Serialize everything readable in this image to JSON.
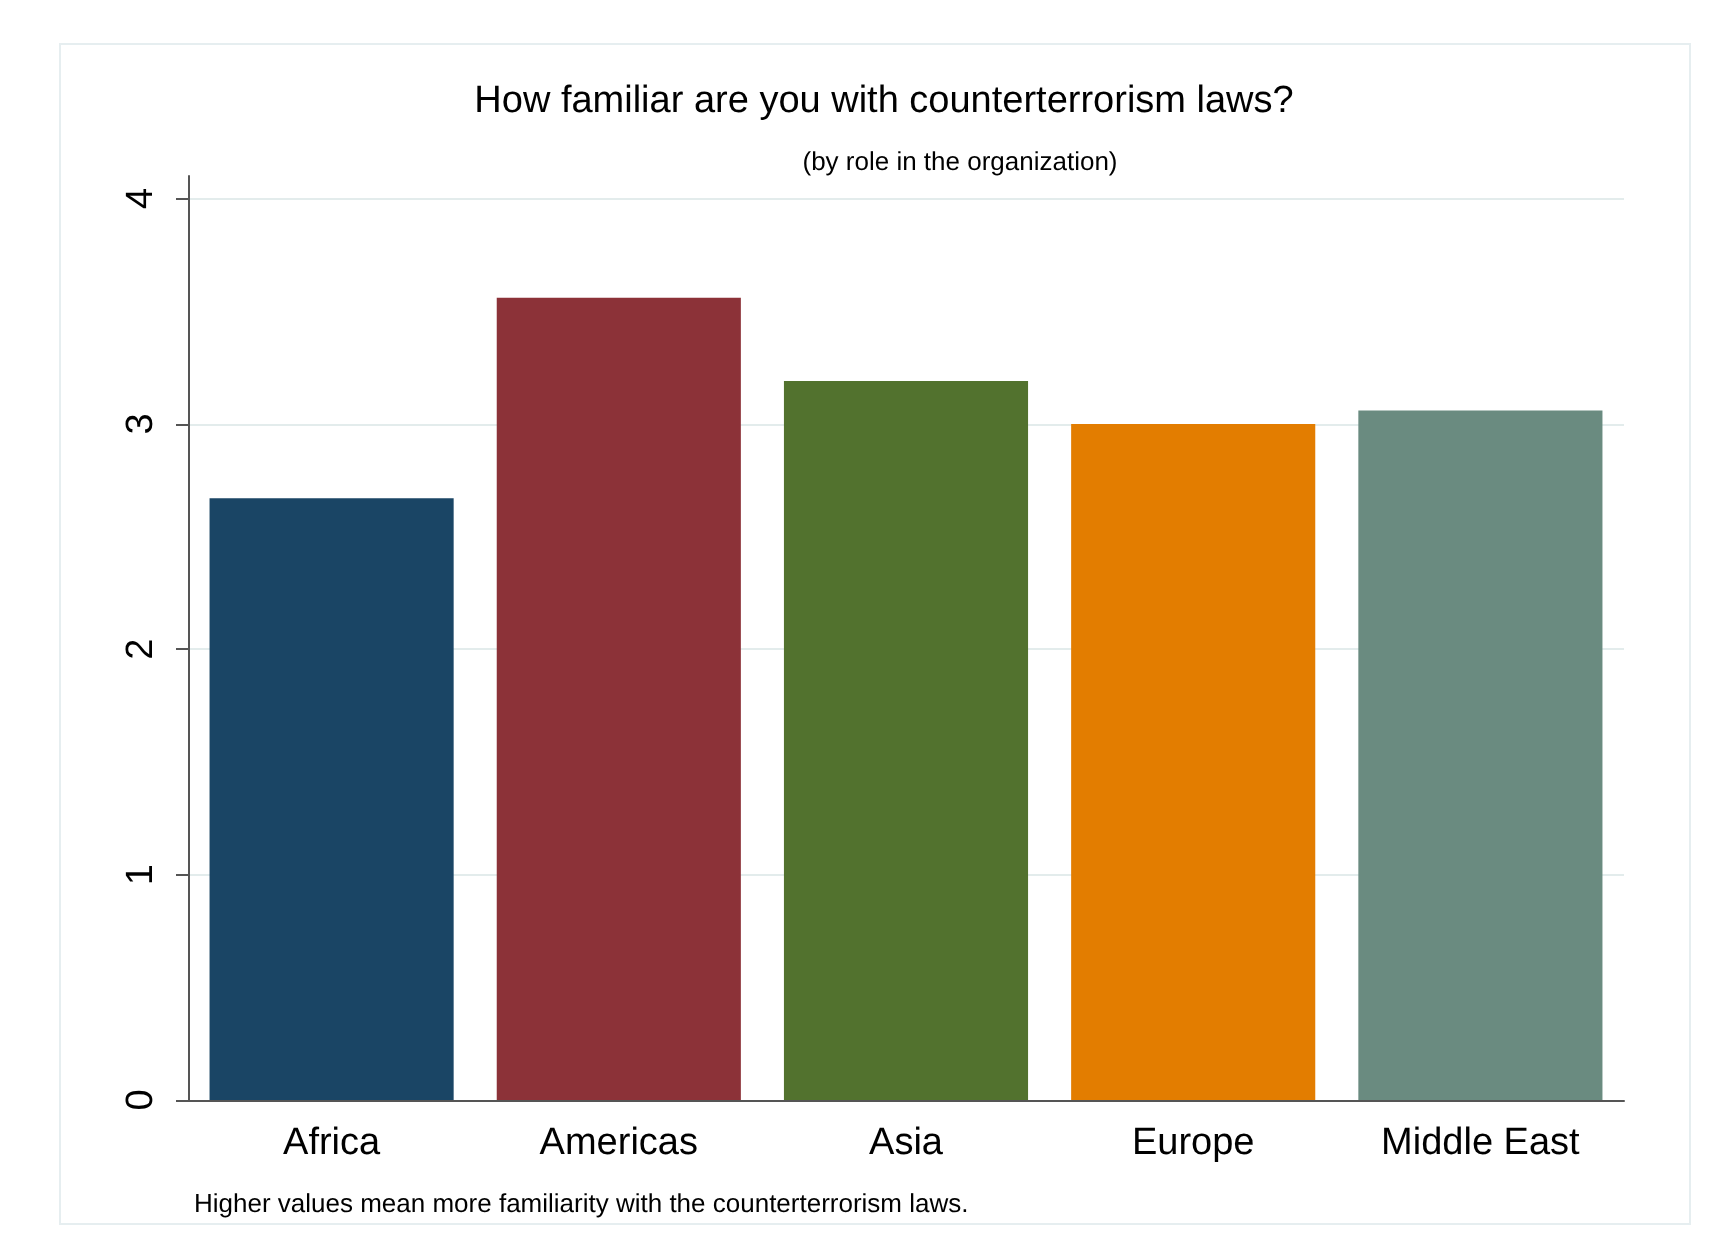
{
  "chart_data": {
    "type": "bar",
    "title": "How familiar are you with counterterrorism laws?",
    "subtitle": "(by role in the organization)",
    "categories": [
      "Africa",
      "Americas",
      "Asia",
      "Europe",
      "Middle East"
    ],
    "values": [
      2.67,
      3.56,
      3.19,
      3.0,
      3.06
    ],
    "colors": [
      "#1a4565",
      "#8c3238",
      "#52722e",
      "#e37d00",
      "#6a8b80"
    ],
    "ylim": [
      0,
      4.1
    ],
    "yticks": [
      0,
      1,
      2,
      3,
      4
    ],
    "grid": "y",
    "annotations": [
      "Higher values mean more familiarity with the counterterrorism laws."
    ]
  }
}
